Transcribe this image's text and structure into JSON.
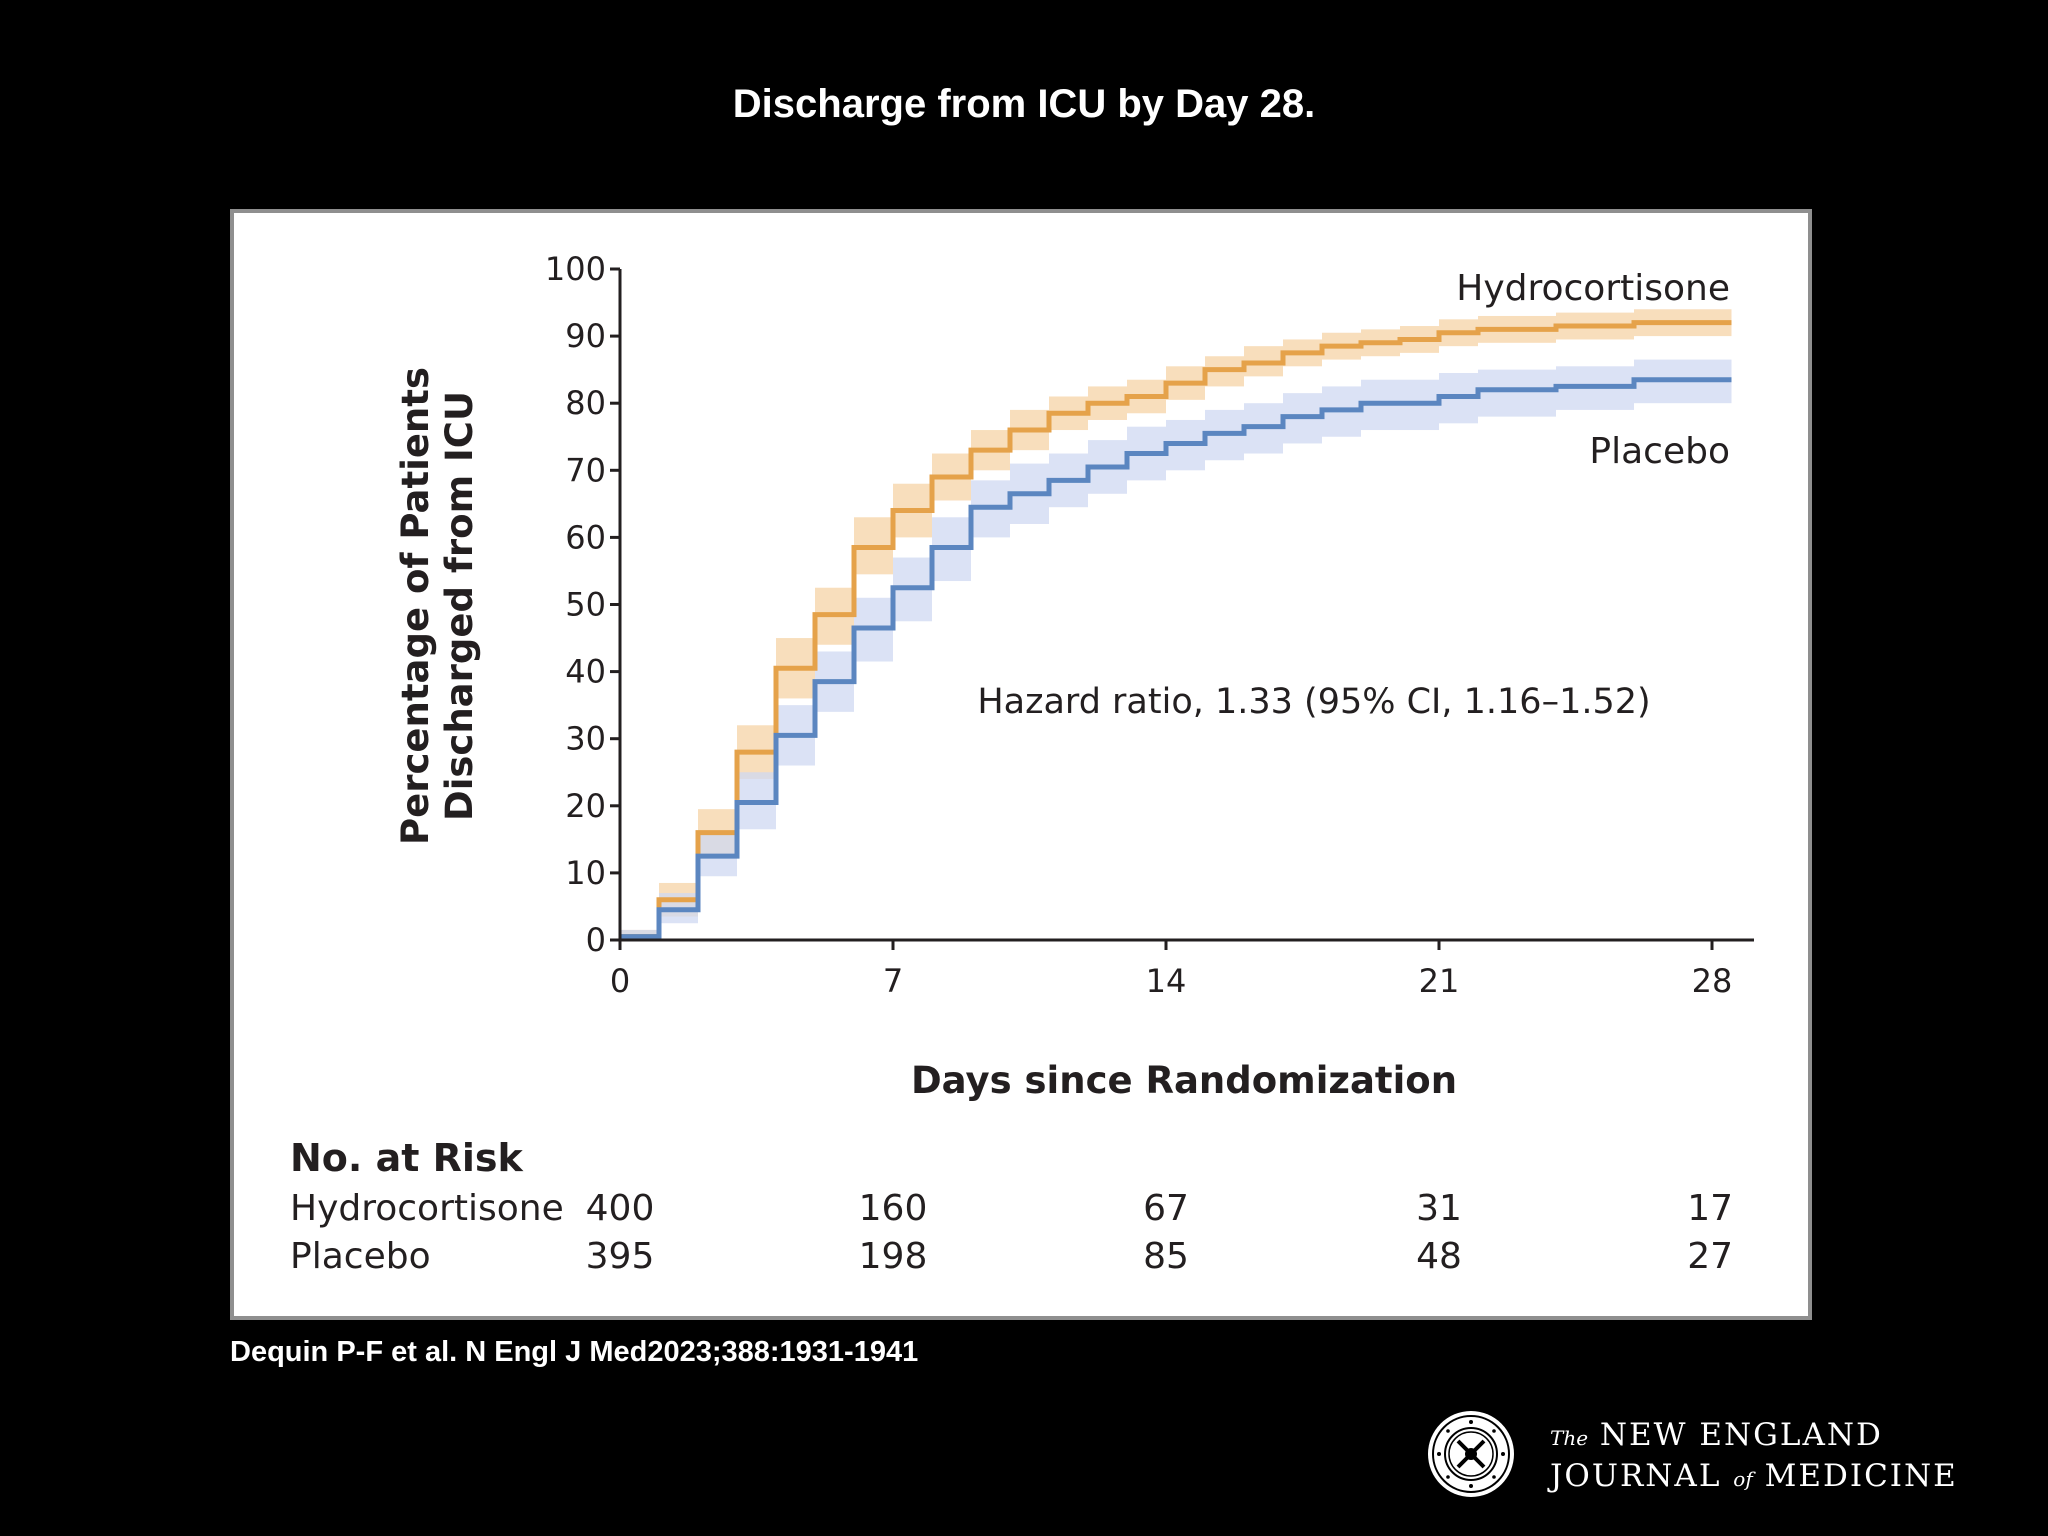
{
  "slide": {
    "title": "Discharge from ICU by Day 28.",
    "citation": "Dequin P-F et al. N Engl J Med2023;388:1931-1941"
  },
  "publisher": {
    "the": "The",
    "line1": "NEW ENGLAND",
    "line2a": "JOURNAL",
    "of": "of",
    "line2b": "MEDICINE",
    "seal_icon": "nejm-seal-icon"
  },
  "chart_data": {
    "type": "line",
    "subtype": "kaplan-meier-cumulative-incidence",
    "title": "",
    "xlabel": "Days since Randomization",
    "ylabel_line1": "Percentage of Patients",
    "ylabel_line2": "Discharged from ICU",
    "xlim": [
      0,
      29
    ],
    "ylim": [
      0,
      100
    ],
    "x_ticks": [
      0,
      7,
      14,
      21,
      28
    ],
    "y_ticks": [
      0,
      10,
      20,
      30,
      40,
      50,
      60,
      70,
      80,
      90,
      100
    ],
    "grid": false,
    "legend": "inline labels at right end of curves",
    "annotation": "Hazard ratio, 1.33 (95% CI, 1.16–1.52)",
    "series": [
      {
        "name": "Hydrocortisone",
        "color": "#e5a24a",
        "band_color": "#f6d3a6",
        "steps": [
          [
            0,
            0.5
          ],
          [
            1,
            6
          ],
          [
            2,
            16
          ],
          [
            3,
            28
          ],
          [
            4,
            40.5
          ],
          [
            5,
            48.5
          ],
          [
            6,
            58.5
          ],
          [
            7,
            64
          ],
          [
            8,
            69
          ],
          [
            9,
            73
          ],
          [
            10,
            76
          ],
          [
            11,
            78.5
          ],
          [
            12,
            80
          ],
          [
            13,
            81
          ],
          [
            14,
            83
          ],
          [
            15,
            85
          ],
          [
            16,
            86
          ],
          [
            17,
            87.5
          ],
          [
            18,
            88.5
          ],
          [
            19,
            89
          ],
          [
            20,
            89.5
          ],
          [
            21,
            90.5
          ],
          [
            22,
            91
          ],
          [
            24,
            91.5
          ],
          [
            26,
            92
          ],
          [
            28.5,
            92
          ]
        ],
        "ci_lower": [
          0,
          3.5,
          12.5,
          24,
          36,
          44,
          54.5,
          60,
          65.5,
          70,
          73,
          76,
          77.5,
          78.5,
          80.5,
          82.5,
          84,
          85.5,
          86.5,
          87,
          87.5,
          88.5,
          89,
          89.5,
          90,
          90
        ],
        "ci_upper": [
          1.5,
          8.5,
          19.5,
          32,
          45,
          52.5,
          63,
          68,
          72.5,
          76,
          79,
          81,
          82.5,
          83.5,
          85.5,
          87,
          88.5,
          89.5,
          90.5,
          91,
          91.5,
          92.5,
          93,
          93.5,
          94,
          94
        ]
      },
      {
        "name": "Placebo",
        "color": "#5b86c0",
        "band_color": "#cfd8f2",
        "steps": [
          [
            0,
            0.5
          ],
          [
            1,
            4.5
          ],
          [
            2,
            12.5
          ],
          [
            3,
            20.5
          ],
          [
            4,
            30.5
          ],
          [
            5,
            38.5
          ],
          [
            6,
            46.5
          ],
          [
            7,
            52.5
          ],
          [
            8,
            58.5
          ],
          [
            9,
            64.5
          ],
          [
            10,
            66.5
          ],
          [
            11,
            68.5
          ],
          [
            12,
            70.5
          ],
          [
            13,
            72.5
          ],
          [
            14,
            74
          ],
          [
            15,
            75.5
          ],
          [
            16,
            76.5
          ],
          [
            17,
            78
          ],
          [
            18,
            79
          ],
          [
            19,
            80
          ],
          [
            21,
            81
          ],
          [
            22,
            82
          ],
          [
            24,
            82.5
          ],
          [
            26,
            83.5
          ],
          [
            28.5,
            83.5
          ]
        ],
        "ci_lower": [
          0,
          2.5,
          9.5,
          16.5,
          26,
          34,
          41.5,
          47.5,
          53.5,
          60,
          62,
          64.5,
          66.5,
          68.5,
          70,
          71.5,
          72.5,
          74,
          75,
          76,
          77,
          78,
          79,
          80,
          80
        ],
        "ci_upper": [
          1.5,
          7,
          16,
          25,
          35,
          43,
          51,
          57,
          63,
          68.5,
          71,
          72.5,
          74.5,
          76.5,
          77.5,
          79,
          80,
          81.5,
          82.5,
          83.5,
          84.5,
          85,
          85.5,
          86.5,
          86.5
        ]
      }
    ],
    "risk_table": {
      "title": "No. at Risk",
      "days": [
        0,
        7,
        14,
        21,
        28
      ],
      "rows": [
        {
          "name": "Hydrocortisone",
          "values": [
            "400",
            "160",
            "67",
            "31",
            "17"
          ]
        },
        {
          "name": "Placebo",
          "values": [
            "395",
            "198",
            "85",
            "48",
            "27"
          ]
        }
      ]
    }
  }
}
